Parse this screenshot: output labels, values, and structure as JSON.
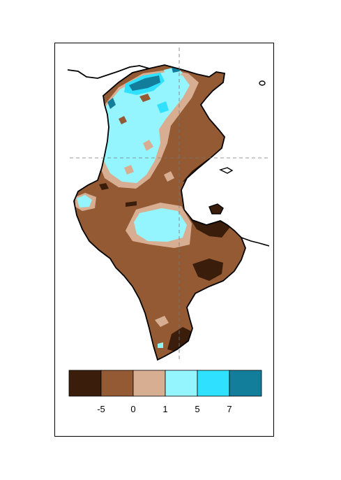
{
  "legend": {
    "colors": [
      "#3a1d0b",
      "#945a34",
      "#d8ae92",
      "#95f5ff",
      "#2fe0ff",
      "#137e9c"
    ],
    "ticks": [
      "-5",
      "0",
      "1",
      "5",
      "7"
    ]
  }
}
